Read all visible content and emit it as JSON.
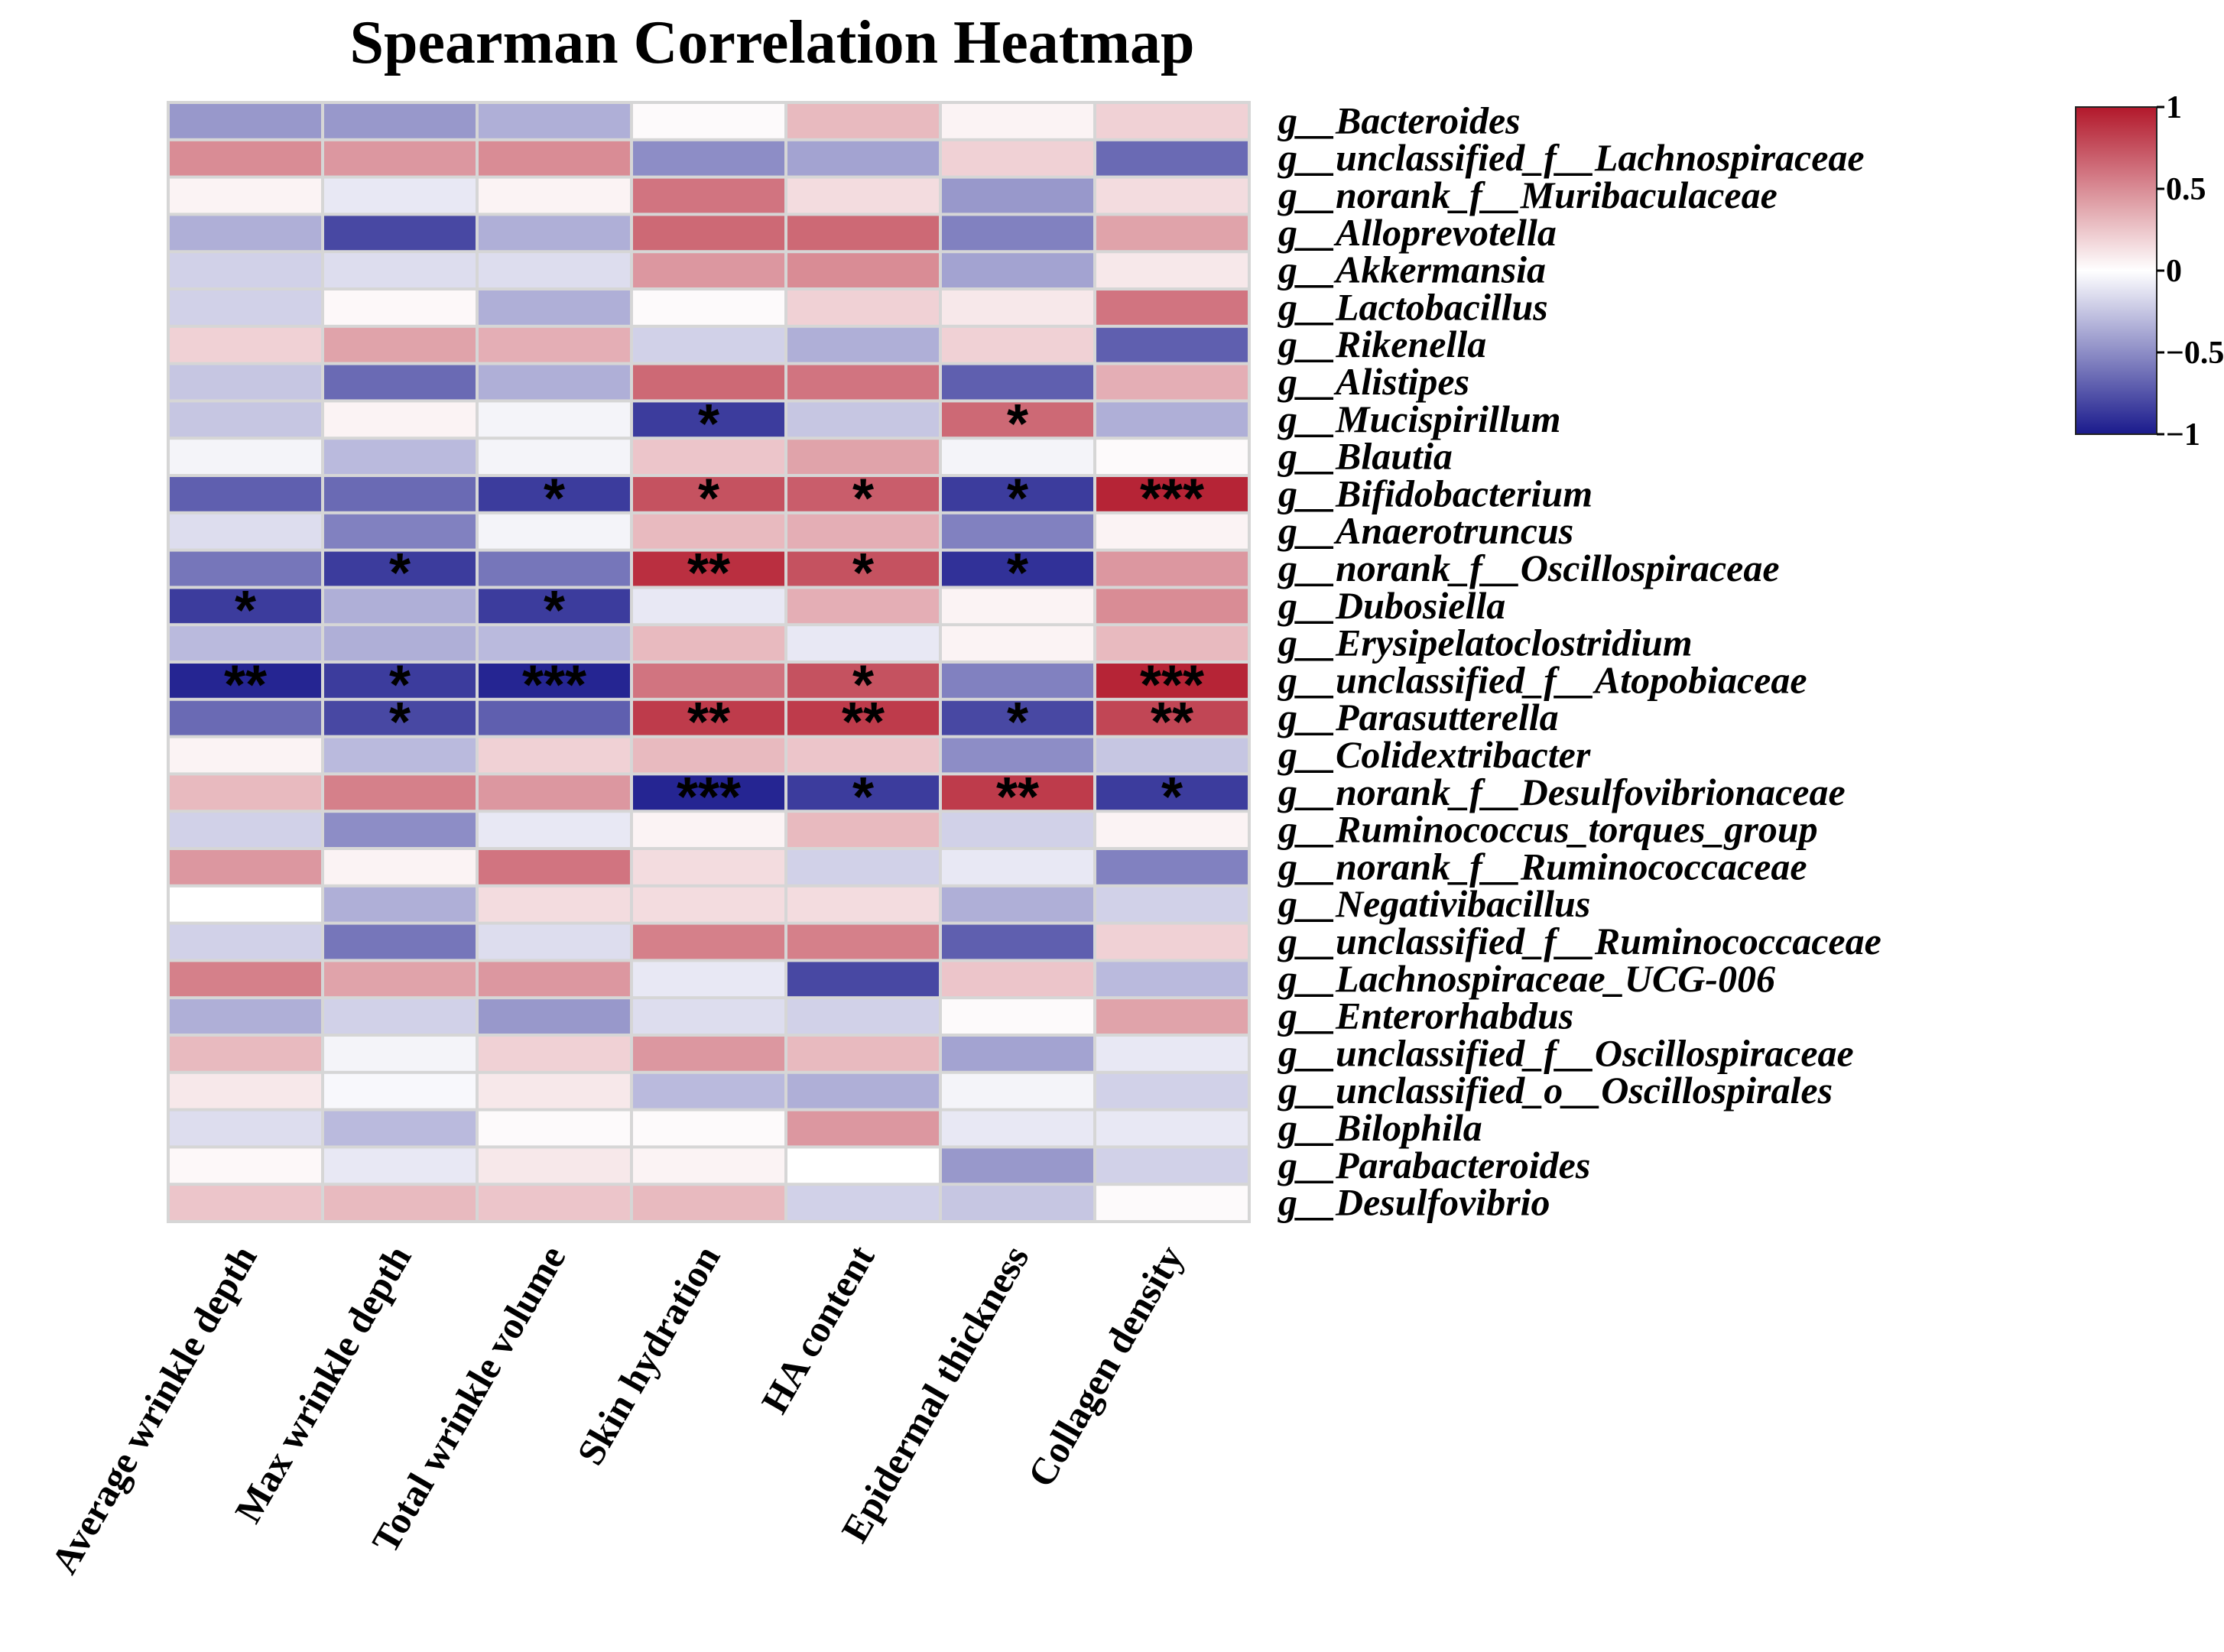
{
  "chart_data": {
    "type": "heatmap",
    "title": "Spearman Correlation Heatmap",
    "columns": [
      "Average wrinkle depth",
      "Max wrinkle depth",
      "Total wrinkle volume",
      "Skin hydration",
      "HA content",
      "Epidermal thickness",
      "Collagen density"
    ],
    "rows": [
      "g__Bacteroides",
      "g__unclassified_f__Lachnospiraceae",
      "g__norank_f__Muribaculaceae",
      "g__Alloprevotella",
      "g__Akkermansia",
      "g__Lactobacillus",
      "g__Rikenella",
      "g__Alistipes",
      "g__Mucispirillum",
      "g__Blautia",
      "g__Bifidobacterium",
      "g__Anaerotruncus",
      "g__norank_f__Oscillospiraceae",
      "g__Dubosiella",
      "g__Erysipelatoclostridium",
      "g__unclassified_f__Atopobiaceae",
      "g__Parasutterella",
      "g__Colidextribacter",
      "g__norank_f__Desulfovibrionaceae",
      "g__Ruminococcus_torques_group",
      "g__norank_f__Ruminococcaceae",
      "g__Negativibacillus",
      "g__unclassified_f__Ruminococcaceae",
      "g__Lachnospiraceae_UCG-006",
      "g__Enterorhabdus",
      "g__unclassified_f__Oscillospiraceae",
      "g__unclassified_o__Oscillospirales",
      "g__Bilophila",
      "g__Parabacteroides",
      "g__Desulfovibrio"
    ],
    "values": [
      [
        -0.45,
        -0.45,
        -0.35,
        0.02,
        0.3,
        0.05,
        0.2
      ],
      [
        0.5,
        0.45,
        0.5,
        -0.5,
        -0.4,
        0.2,
        -0.65
      ],
      [
        0.05,
        -0.1,
        0.05,
        0.6,
        0.15,
        -0.45,
        0.15
      ],
      [
        -0.35,
        -0.8,
        -0.35,
        0.65,
        0.65,
        -0.55,
        0.4
      ],
      [
        -0.2,
        -0.15,
        -0.15,
        0.45,
        0.5,
        -0.4,
        0.1
      ],
      [
        -0.2,
        0.03,
        -0.35,
        0.02,
        0.2,
        0.1,
        0.6
      ],
      [
        0.2,
        0.4,
        0.35,
        -0.2,
        -0.35,
        0.2,
        -0.7
      ],
      [
        -0.25,
        -0.65,
        -0.35,
        0.65,
        0.6,
        -0.7,
        0.35
      ],
      [
        -0.25,
        0.05,
        -0.05,
        -0.85,
        -0.25,
        0.65,
        -0.35
      ],
      [
        -0.05,
        -0.3,
        -0.05,
        0.25,
        0.4,
        -0.05,
        0.02
      ],
      [
        -0.7,
        -0.65,
        -0.85,
        0.75,
        0.7,
        -0.85,
        0.95
      ],
      [
        -0.15,
        -0.55,
        -0.05,
        0.3,
        0.35,
        -0.55,
        0.05
      ],
      [
        -0.6,
        -0.85,
        -0.6,
        0.9,
        0.75,
        -0.9,
        0.45
      ],
      [
        -0.85,
        -0.35,
        -0.85,
        -0.1,
        0.35,
        0.05,
        0.5
      ],
      [
        -0.3,
        -0.35,
        -0.3,
        0.3,
        -0.1,
        0.05,
        0.3
      ],
      [
        -0.95,
        -0.85,
        -0.95,
        0.6,
        0.75,
        -0.55,
        0.95
      ],
      [
        -0.65,
        -0.8,
        -0.7,
        0.85,
        0.85,
        -0.8,
        0.8
      ],
      [
        0.05,
        -0.3,
        0.2,
        0.3,
        0.25,
        -0.5,
        -0.25
      ],
      [
        0.3,
        0.55,
        0.45,
        -0.95,
        -0.85,
        0.85,
        -0.85
      ],
      [
        -0.2,
        -0.5,
        -0.1,
        0.05,
        0.3,
        -0.2,
        0.05
      ],
      [
        0.45,
        0.05,
        0.6,
        0.15,
        -0.2,
        -0.1,
        -0.55
      ],
      [
        0.0,
        -0.35,
        0.15,
        0.15,
        0.15,
        -0.35,
        -0.2
      ],
      [
        -0.2,
        -0.6,
        -0.15,
        0.55,
        0.55,
        -0.7,
        0.2
      ],
      [
        0.55,
        0.4,
        0.45,
        -0.1,
        -0.8,
        0.25,
        -0.3
      ],
      [
        -0.35,
        -0.2,
        -0.45,
        -0.15,
        -0.2,
        0.02,
        0.4
      ],
      [
        0.3,
        -0.05,
        0.2,
        0.45,
        0.3,
        -0.4,
        -0.1
      ],
      [
        0.1,
        -0.03,
        0.1,
        -0.3,
        -0.35,
        -0.05,
        -0.2
      ],
      [
        -0.15,
        -0.3,
        0.02,
        0.02,
        0.45,
        -0.1,
        -0.1
      ],
      [
        0.03,
        -0.1,
        0.1,
        0.05,
        0.0,
        -0.45,
        -0.2
      ],
      [
        0.25,
        0.3,
        0.25,
        0.3,
        -0.2,
        -0.25,
        0.02
      ]
    ],
    "significance": [
      [
        "",
        "",
        "",
        "",
        "",
        "",
        ""
      ],
      [
        "",
        "",
        "",
        "",
        "",
        "",
        ""
      ],
      [
        "",
        "",
        "",
        "",
        "",
        "",
        ""
      ],
      [
        "",
        "",
        "",
        "",
        "",
        "",
        ""
      ],
      [
        "",
        "",
        "",
        "",
        "",
        "",
        ""
      ],
      [
        "",
        "",
        "",
        "",
        "",
        "",
        ""
      ],
      [
        "",
        "",
        "",
        "",
        "",
        "",
        ""
      ],
      [
        "",
        "",
        "",
        "",
        "",
        "",
        ""
      ],
      [
        "",
        "",
        "",
        "*",
        "",
        "*",
        ""
      ],
      [
        "",
        "",
        "",
        "",
        "",
        "",
        ""
      ],
      [
        "",
        "",
        "*",
        "*",
        "*",
        "*",
        "***"
      ],
      [
        "",
        "",
        "",
        "",
        "",
        "",
        ""
      ],
      [
        "",
        "*",
        "",
        "**",
        "*",
        "*",
        ""
      ],
      [
        "*",
        "",
        "*",
        "",
        "",
        "",
        ""
      ],
      [
        "",
        "",
        "",
        "",
        "",
        "",
        ""
      ],
      [
        "**",
        "*",
        "***",
        "",
        "*",
        "",
        "***"
      ],
      [
        "",
        "*",
        "",
        "**",
        "**",
        "*",
        "**"
      ],
      [
        "",
        "",
        "",
        "",
        "",
        "",
        ""
      ],
      [
        "",
        "",
        "",
        "***",
        "*",
        "**",
        "*"
      ],
      [
        "",
        "",
        "",
        "",
        "",
        "",
        ""
      ],
      [
        "",
        "",
        "",
        "",
        "",
        "",
        ""
      ],
      [
        "",
        "",
        "",
        "",
        "",
        "",
        ""
      ],
      [
        "",
        "",
        "",
        "",
        "",
        "",
        ""
      ],
      [
        "",
        "",
        "",
        "",
        "",
        "",
        ""
      ],
      [
        "",
        "",
        "",
        "",
        "",
        "",
        ""
      ],
      [
        "",
        "",
        "",
        "",
        "",
        "",
        ""
      ],
      [
        "",
        "",
        "",
        "",
        "",
        "",
        ""
      ],
      [
        "",
        "",
        "",
        "",
        "",
        "",
        ""
      ],
      [
        "",
        "",
        "",
        "",
        "",
        "",
        ""
      ],
      [
        "",
        "",
        "",
        "",
        "",
        "",
        ""
      ]
    ],
    "colorbar": {
      "ticks": [
        "1",
        "0.5",
        "0",
        "−0.5",
        "−1"
      ],
      "tick_values": [
        1,
        0.5,
        0,
        -0.5,
        -1
      ],
      "range": [
        -1,
        1
      ],
      "colors": {
        "high": "#b2182b",
        "mid": "#ffffff",
        "low": "#1a1a8c"
      }
    },
    "grid": true,
    "legend_position": "top-right"
  }
}
